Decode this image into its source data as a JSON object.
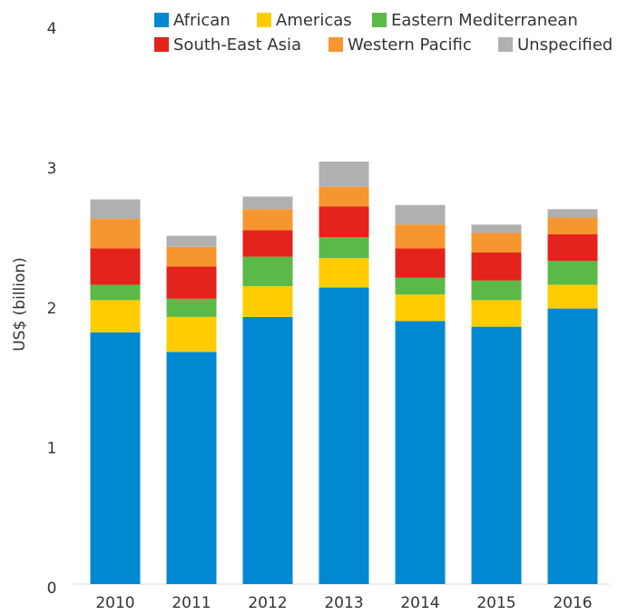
{
  "chart_data": {
    "type": "stacked-bar",
    "y_label": "US$ (billion)",
    "categories": [
      "2010",
      "2011",
      "2012",
      "2013",
      "2014",
      "2015",
      "2016"
    ],
    "series": [
      {
        "name": "African",
        "color": "#0089d1",
        "values": [
          1.8,
          1.66,
          1.91,
          2.12,
          1.88,
          1.84,
          1.97
        ]
      },
      {
        "name": "Americas",
        "color": "#ffcc00",
        "values": [
          0.23,
          0.25,
          0.22,
          0.21,
          0.19,
          0.19,
          0.17
        ]
      },
      {
        "name": "Eastern Mediterranean",
        "color": "#5ab947",
        "values": [
          0.11,
          0.13,
          0.21,
          0.15,
          0.12,
          0.14,
          0.17
        ]
      },
      {
        "name": "South-East Asia",
        "color": "#e4231c",
        "values": [
          0.26,
          0.23,
          0.19,
          0.22,
          0.21,
          0.2,
          0.19
        ]
      },
      {
        "name": "Western Pacific",
        "color": "#f7962e",
        "values": [
          0.21,
          0.14,
          0.15,
          0.14,
          0.17,
          0.14,
          0.12
        ]
      },
      {
        "name": "Unspecified",
        "color": "#b0b0b0",
        "values": [
          0.14,
          0.08,
          0.09,
          0.18,
          0.14,
          0.06,
          0.06
        ]
      }
    ],
    "ylim": [
      0,
      4
    ],
    "yticks": [
      0,
      1,
      2,
      3,
      4
    ],
    "legend": "top-right"
  }
}
